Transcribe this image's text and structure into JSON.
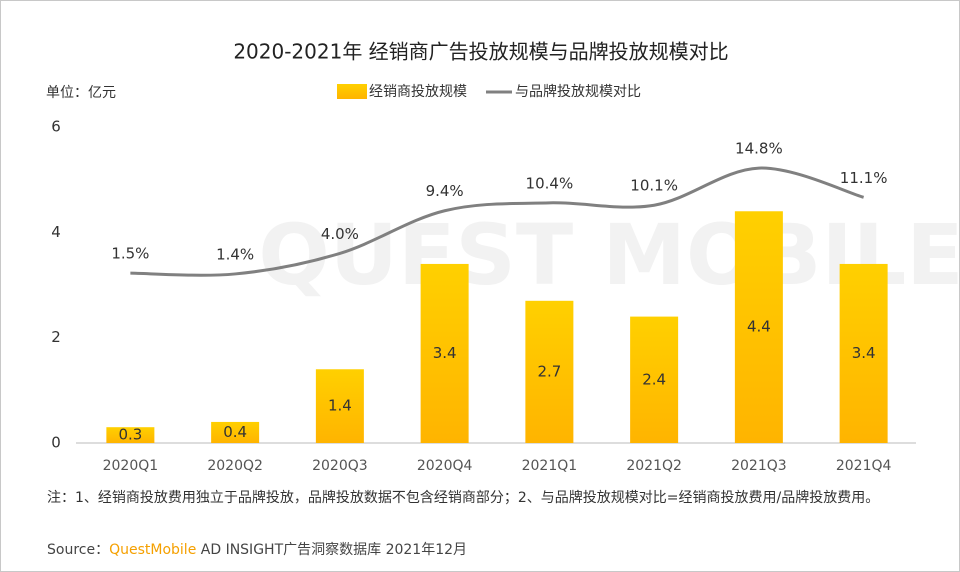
{
  "chart_data": {
    "type": "bar",
    "title": "2020-2021年 经销商广告投放规模与品牌投放规模对比",
    "unit_label": "单位：亿元",
    "watermark": "QUEST MOBILE",
    "categories": [
      "2020Q1",
      "2020Q2",
      "2020Q3",
      "2020Q4",
      "2021Q1",
      "2021Q2",
      "2021Q3",
      "2021Q4"
    ],
    "series": [
      {
        "name": "经销商投放规模",
        "type": "bar",
        "color": "#ffc400",
        "values": [
          0.3,
          0.4,
          1.4,
          3.4,
          2.7,
          2.4,
          4.4,
          3.4
        ]
      },
      {
        "name": "与品牌投放规模对比",
        "type": "line",
        "axis": "y2",
        "color": "#808080",
        "values": [
          1.5,
          1.4,
          4.0,
          9.4,
          10.4,
          10.1,
          14.8,
          11.1
        ],
        "value_labels": [
          "1.5%",
          "1.4%",
          "4.0%",
          "9.4%",
          "10.4%",
          "10.1%",
          "14.8%",
          "11.1%"
        ]
      }
    ],
    "ylim": [
      0,
      6
    ],
    "yticks": [
      0,
      2,
      4,
      6
    ],
    "y2lim": [
      -20,
      20
    ],
    "note": "注：1、经销商投放费用独立于品牌投放，品牌投放数据不包含经销商部分；2、与品牌投放规模对比=经销商投放费用/品牌投放费用。",
    "source": {
      "prefix": "Source：",
      "brand": "QuestMobile",
      "rest": " AD INSIGHT广告洞察数据库 2021年12月"
    }
  }
}
